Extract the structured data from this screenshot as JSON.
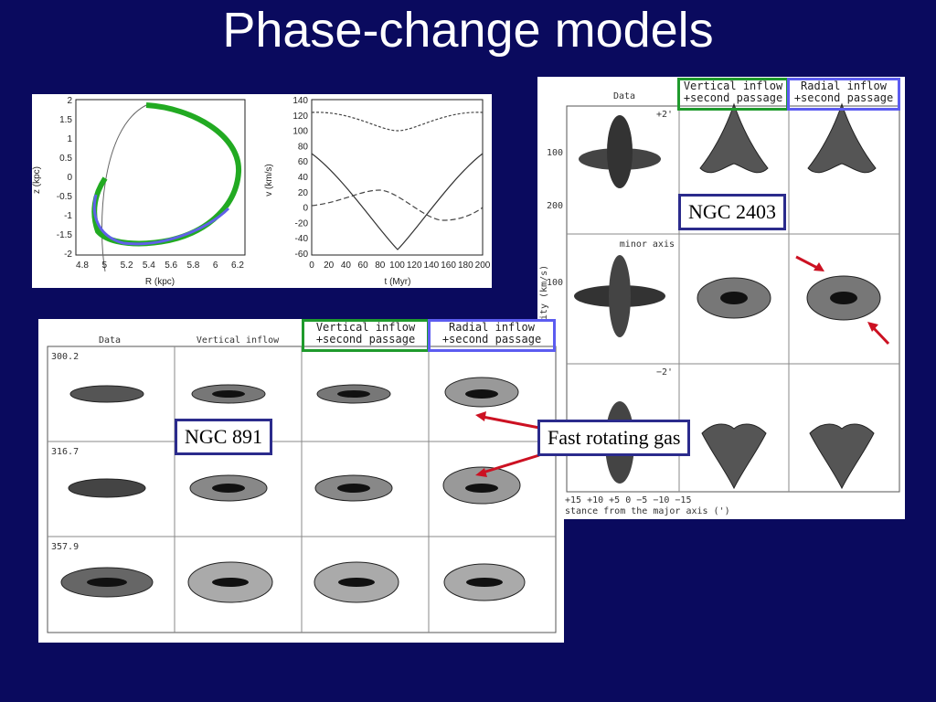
{
  "slide": {
    "title": "Phase-change models"
  },
  "orbit_plot": {
    "ylabel": "z (kpc)",
    "xlabel": "R (kpc)",
    "x_ticks": [
      "4.8",
      "5",
      "5.2",
      "5.4",
      "5.6",
      "5.8",
      "6",
      "6.2"
    ],
    "y_ticks": [
      "2",
      "1.5",
      "1",
      "0.5",
      "0",
      "-0.5",
      "-1",
      "-1.5",
      "-2"
    ]
  },
  "velocity_plot": {
    "ylabel": "v (km/s)",
    "xlabel": "t (Myr)",
    "x_ticks": [
      "0",
      "20",
      "40",
      "60",
      "80",
      "100",
      "120",
      "140",
      "160",
      "180",
      "200"
    ],
    "y_ticks": [
      "140",
      "120",
      "100",
      "80",
      "60",
      "40",
      "20",
      "0",
      "-20",
      "-40",
      "-60"
    ]
  },
  "ngc2403": {
    "col_data": "Data",
    "col_vertical": "Vertical inflow\n+second passage",
    "col_radial": "Radial inflow\n+second passage",
    "offset_top": "+2'",
    "offset_mid": "minor axis",
    "offset_bot": "−2'",
    "ylabel": "ic velocity (km/s)",
    "xlabel": "stance from the major axis (')",
    "x_ticks": "+15 +10 +5  0  −5 −10 −15",
    "y_tick_100a": "100",
    "y_tick_200": "200",
    "y_tick_100b": "100",
    "label": "NGC 2403"
  },
  "ngc891": {
    "col_data": "Data",
    "col_vertical": "Vertical inflow",
    "col_vertical2": "Vertical inflow\n+second passage",
    "col_radial": "Radial inflow\n+second passage",
    "row_labels": [
      "300.2",
      "316.7",
      "357.9"
    ],
    "label": "NGC 891"
  },
  "annotation": {
    "fast_rotating": "Fast rotating gas"
  },
  "colors": {
    "background": "#0a0a5e",
    "green": "#1f9a2c",
    "blue": "#5c5cf0",
    "arrow": "#cc1122"
  }
}
